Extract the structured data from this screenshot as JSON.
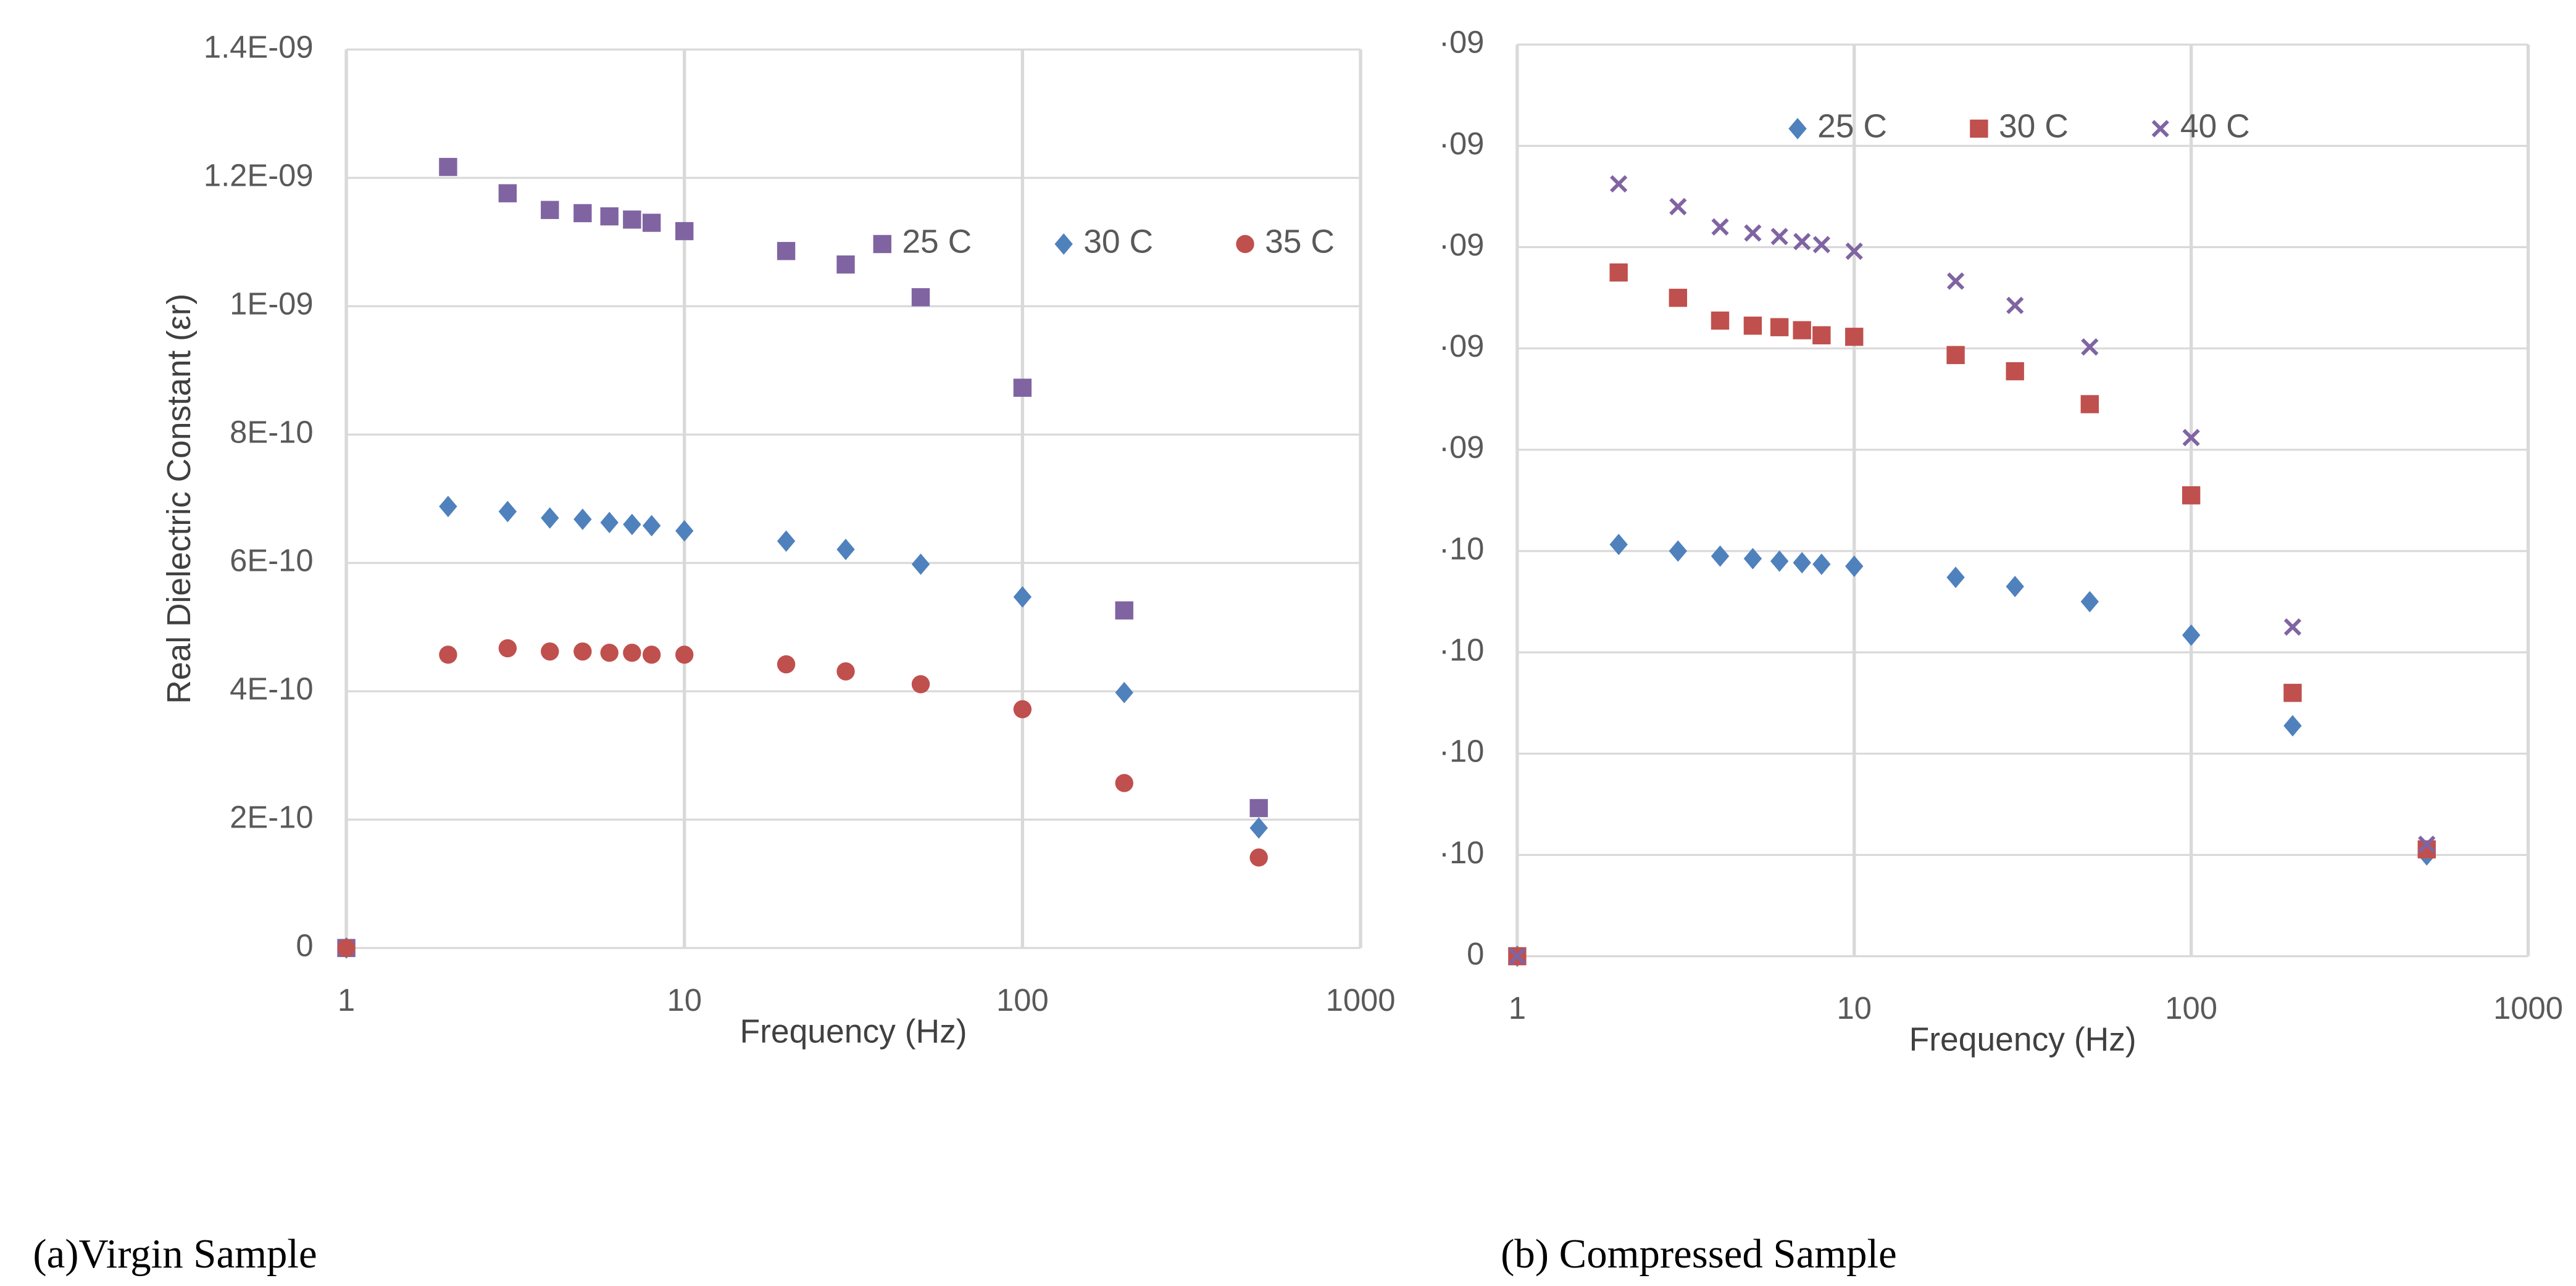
{
  "chart_data": [
    {
      "type": "scatter",
      "caption": "(a)Virgin Sample",
      "xlabel": "Frequency (Hz)",
      "ylabel": "Real Dielectric Constant (εr)",
      "xscale": "log",
      "grid": true,
      "legend": "top",
      "xlim": [
        1,
        1000
      ],
      "xticks": [
        1,
        10,
        100,
        1000
      ],
      "ylim": [
        0,
        1.4e-09
      ],
      "yticks": [
        0,
        {
          "value": 2e-10,
          "label": "2E-10"
        },
        {
          "value": 4e-10,
          "label": "4E-10"
        },
        {
          "value": 6e-10,
          "label": "6E-10"
        },
        {
          "value": 8e-10,
          "label": "8E-10"
        },
        {
          "value": 1e-09,
          "label": "1E-09"
        },
        {
          "value": 1.2e-09,
          "label": "1.2E-09"
        },
        {
          "value": 1.4e-09,
          "label": "1.4E-09"
        }
      ],
      "x": [
        1,
        2,
        3,
        4,
        5,
        6,
        7,
        8,
        10,
        20,
        30,
        50,
        100,
        200,
        500
      ],
      "series": [
        {
          "name": "25 C",
          "color": "#8064a2",
          "marker": "square",
          "values": [
            0,
            1.217e-09,
            1.176e-09,
            1.15e-09,
            1.145e-09,
            1.14e-09,
            1.135e-09,
            1.13e-09,
            1.117e-09,
            1.086e-09,
            1.065e-09,
            1.014e-09,
            8.73e-10,
            5.26e-10,
            2.18e-10
          ]
        },
        {
          "name": "30 C",
          "color": "#4f81bd",
          "marker": "diamond",
          "values": [
            0,
            6.88e-10,
            6.8e-10,
            6.7e-10,
            6.68e-10,
            6.63e-10,
            6.6e-10,
            6.58e-10,
            6.5e-10,
            6.34e-10,
            6.21e-10,
            5.98e-10,
            5.47e-10,
            3.98e-10,
            1.87e-10
          ]
        },
        {
          "name": "35 C",
          "color": "#c0504d",
          "marker": "circle",
          "values": [
            0,
            4.57e-10,
            4.67e-10,
            4.62e-10,
            4.62e-10,
            4.6e-10,
            4.6e-10,
            4.57e-10,
            4.57e-10,
            4.42e-10,
            4.31e-10,
            4.11e-10,
            3.72e-10,
            2.57e-10,
            1.41e-10
          ]
        }
      ]
    },
    {
      "type": "scatter",
      "caption": "(b) Compressed Sample",
      "xlabel": "Frequency (Hz)",
      "xscale": "log",
      "grid": true,
      "legend": "top",
      "xlim": [
        1,
        1000
      ],
      "xticks": [
        1,
        10,
        100,
        1000
      ],
      "ylim": [
        0,
        1.8e-09
      ],
      "yticks": [
        0,
        {
          "value": 2e-10,
          "label": "·10"
        },
        {
          "value": 4e-10,
          "label": "·10"
        },
        {
          "value": 6e-10,
          "label": "·10"
        },
        {
          "value": 8e-10,
          "label": "·10"
        },
        {
          "value": 1e-09,
          "label": "·09"
        },
        {
          "value": 1.2e-09,
          "label": "·09"
        },
        {
          "value": 1.4e-09,
          "label": "·09"
        },
        {
          "value": 1.6e-09,
          "label": "·09"
        },
        {
          "value": 1.8e-09,
          "label": "·09"
        }
      ],
      "x": [
        1,
        2,
        3,
        4,
        5,
        6,
        7,
        8,
        10,
        20,
        30,
        50,
        100,
        200,
        500
      ],
      "series": [
        {
          "name": "25 C",
          "color": "#4f81bd",
          "marker": "diamond",
          "values": [
            0,
            8.13e-10,
            8e-10,
            7.9e-10,
            7.85e-10,
            7.8e-10,
            7.77e-10,
            7.74e-10,
            7.7e-10,
            7.48e-10,
            7.3e-10,
            7e-10,
            6.34e-10,
            4.55e-10,
            2e-10
          ]
        },
        {
          "name": "30 C",
          "color": "#c0504d",
          "marker": "square",
          "values": [
            0,
            1.35e-09,
            1.3e-09,
            1.255e-09,
            1.245e-09,
            1.242e-09,
            1.236e-09,
            1.226e-09,
            1.223e-09,
            1.187e-09,
            1.155e-09,
            1.09e-09,
            9.1e-10,
            5.2e-10,
            2.11e-10
          ]
        },
        {
          "name": "40 C",
          "color": "#8064a2",
          "marker": "x",
          "values": [
            0,
            1.525e-09,
            1.48e-09,
            1.44e-09,
            1.428e-09,
            1.421e-09,
            1.411e-09,
            1.405e-09,
            1.392e-09,
            1.333e-09,
            1.285e-09,
            1.203e-09,
            1.024e-09,
            6.5e-10,
            2.21e-10
          ]
        }
      ]
    }
  ]
}
